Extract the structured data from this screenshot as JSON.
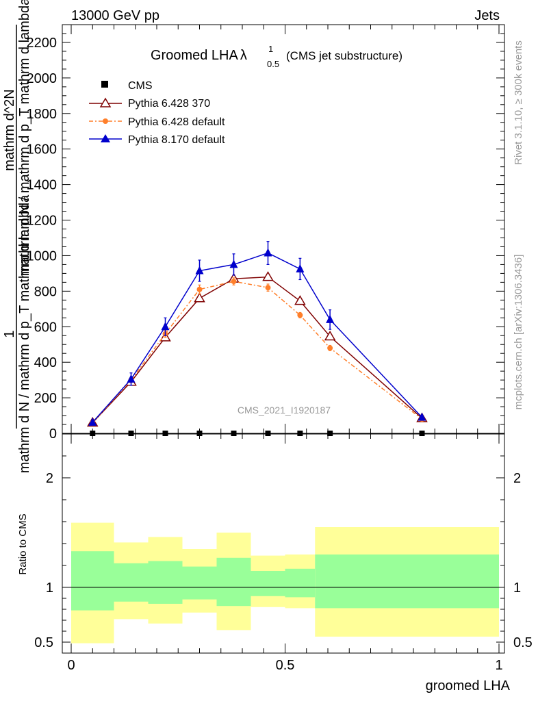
{
  "header": {
    "left": "13000 GeV pp",
    "right": "Jets"
  },
  "plot": {
    "title_main": "Groomed LHA",
    "title_symbol": "λ",
    "title_sup": "1",
    "title_sub": "0.5",
    "title_paren": "(CMS jet substructure)",
    "ylabel_numerator": "1",
    "ylabel_denominator": "mathrm d N / mathrm d p_T mathrm d lambda",
    "ylabel_fraction_text": "mathrm d^2N",
    "ylabel_fraction_denominator": "mathrm d N / mathrm d p_T mathrm d lambda",
    "watermark": "CMS_2021_I1920187",
    "right_label_top": "Rivet 3.1.10, ≥ 300k events",
    "right_label_bottom": "mcplots.cern.ch [arXiv:1306.3436]",
    "ratio_ylabel": "Ratio to CMS",
    "xlabel": "groomed LHA"
  },
  "chart_data": {
    "type": "line",
    "title": "Groomed LHA λ^1_0.5 (CMS jet substructure)",
    "xlabel": "groomed LHA",
    "ylabel": "1 / (mathrm d N / mathrm d p_T mathrm d lambda) · mathrm d^2N / (mathrm d p_T mathrm d lambda)",
    "xlim": [
      0,
      1
    ],
    "ylim": [
      0,
      2300
    ],
    "yticks": [
      0,
      200,
      400,
      600,
      800,
      1000,
      1200,
      1400,
      1600,
      1800,
      2000,
      2200
    ],
    "ytick_labels": [
      "0",
      "200",
      "400",
      "600",
      "800",
      "1000",
      "1200",
      "1400",
      "1600",
      "1800",
      "2000",
      "2200"
    ],
    "x": [
      0.05,
      0.14,
      0.22,
      0.3,
      0.38,
      0.46,
      0.535,
      0.605,
      0.82
    ],
    "series": [
      {
        "name": "CMS",
        "style": "marker",
        "color": "#000000",
        "values": [
          0,
          0,
          0,
          0,
          0,
          0,
          0,
          0,
          0
        ]
      },
      {
        "name": "Pythia 6.428 370",
        "style": "solid-open-triangle",
        "color": "#7f0000",
        "values": [
          60,
          290,
          540,
          760,
          870,
          880,
          745,
          545,
          85
        ]
      },
      {
        "name": "Pythia 6.428 default",
        "style": "dashdot-filled-circle",
        "color": "#ff7f2a",
        "values": [
          60,
          300,
          560,
          810,
          855,
          820,
          665,
          480,
          80
        ],
        "errors": [
          5,
          15,
          20,
          25,
          20,
          20,
          15,
          15,
          5
        ]
      },
      {
        "name": "Pythia 8.170 default",
        "style": "solid-filled-triangle",
        "color": "#0000cc",
        "values": [
          62,
          305,
          600,
          915,
          950,
          1015,
          925,
          640,
          90
        ],
        "errors": [
          8,
          35,
          50,
          60,
          60,
          65,
          60,
          55,
          10
        ]
      }
    ],
    "ratio": {
      "ylabel": "Ratio to CMS",
      "ylim": [
        0.4,
        2.4
      ],
      "yticks": [
        0.5,
        1,
        2
      ],
      "ytick_labels": [
        "0.5",
        "1",
        "2"
      ],
      "xticks": [
        0,
        0.5,
        1
      ],
      "xtick_labels": [
        "0",
        "0.5",
        "1"
      ],
      "bins": [
        {
          "lo": 0.0,
          "hi": 0.1,
          "inner_lo": 0.79,
          "inner_hi": 1.33,
          "outer_lo": 0.49,
          "outer_hi": 1.59
        },
        {
          "lo": 0.1,
          "hi": 0.18,
          "inner_lo": 0.87,
          "inner_hi": 1.22,
          "outer_lo": 0.71,
          "outer_hi": 1.41
        },
        {
          "lo": 0.18,
          "hi": 0.26,
          "inner_lo": 0.85,
          "inner_hi": 1.24,
          "outer_lo": 0.67,
          "outer_hi": 1.46
        },
        {
          "lo": 0.26,
          "hi": 0.34,
          "inner_lo": 0.89,
          "inner_hi": 1.19,
          "outer_lo": 0.77,
          "outer_hi": 1.35
        },
        {
          "lo": 0.34,
          "hi": 0.42,
          "inner_lo": 0.83,
          "inner_hi": 1.27,
          "outer_lo": 0.61,
          "outer_hi": 1.5
        },
        {
          "lo": 0.42,
          "hi": 0.5,
          "inner_lo": 0.92,
          "inner_hi": 1.15,
          "outer_lo": 0.82,
          "outer_hi": 1.29
        },
        {
          "lo": 0.5,
          "hi": 0.57,
          "inner_lo": 0.91,
          "inner_hi": 1.17,
          "outer_lo": 0.81,
          "outer_hi": 1.3
        },
        {
          "lo": 0.57,
          "hi": 1.0,
          "inner_lo": 0.81,
          "inner_hi": 1.3,
          "outer_lo": 0.55,
          "outer_hi": 1.55
        }
      ]
    },
    "legend_position": "top-left"
  },
  "colors": {
    "inner_band": "#99ff99",
    "outer_band": "#ffff99",
    "grey_text": "#999999"
  }
}
